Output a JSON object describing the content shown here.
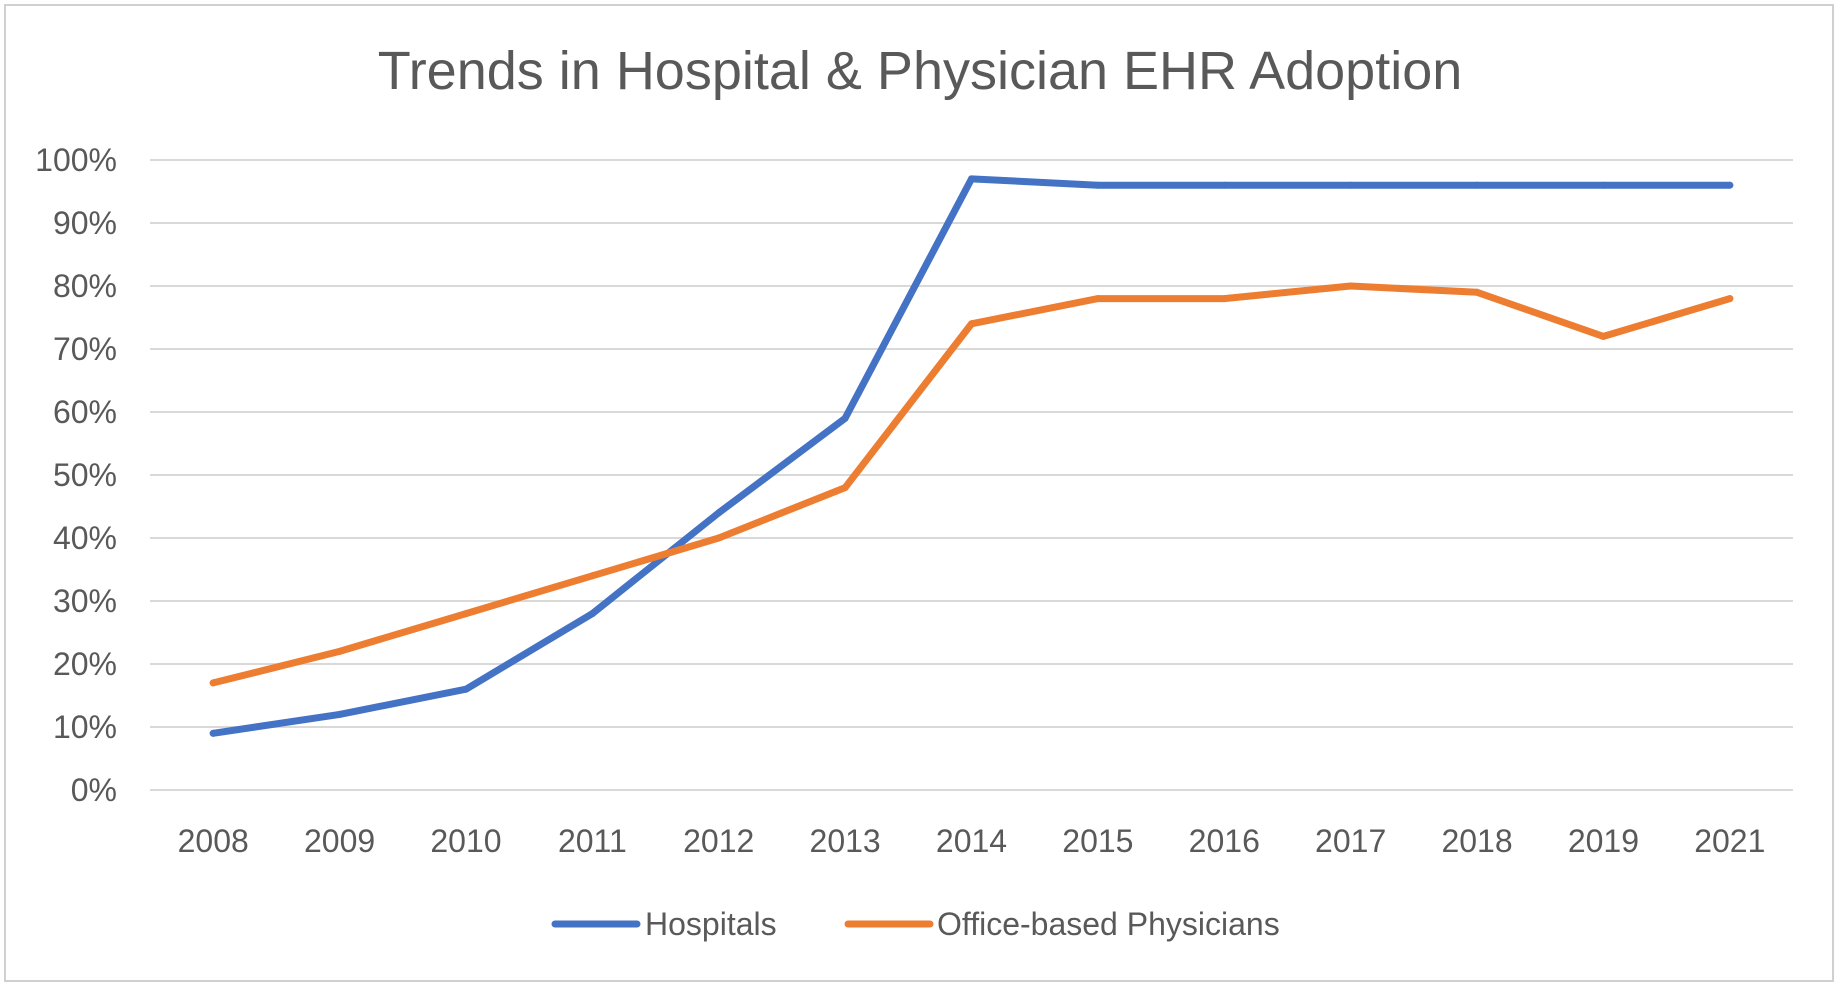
{
  "chart_data": {
    "type": "line",
    "title": "Trends in Hospital & Physician EHR Adoption",
    "xlabel": "",
    "ylabel": "",
    "categories": [
      "2008",
      "2009",
      "2010",
      "2011",
      "2012",
      "2013",
      "2014",
      "2015",
      "2016",
      "2017",
      "2018",
      "2019",
      "2021"
    ],
    "ylim": [
      0,
      100
    ],
    "yticks": [
      "0%",
      "10%",
      "20%",
      "30%",
      "40%",
      "50%",
      "60%",
      "70%",
      "80%",
      "90%",
      "100%"
    ],
    "grid": true,
    "legend_position": "bottom",
    "series": [
      {
        "name": "Hospitals",
        "color": "#4472c4",
        "values": [
          9,
          12,
          16,
          28,
          44,
          59,
          97,
          96,
          96,
          96,
          96,
          96,
          96
        ]
      },
      {
        "name": "Office-based Physicians",
        "color": "#ed7d31",
        "values": [
          17,
          22,
          28,
          34,
          40,
          48,
          74,
          78,
          78,
          80,
          79,
          72,
          78
        ]
      }
    ]
  }
}
